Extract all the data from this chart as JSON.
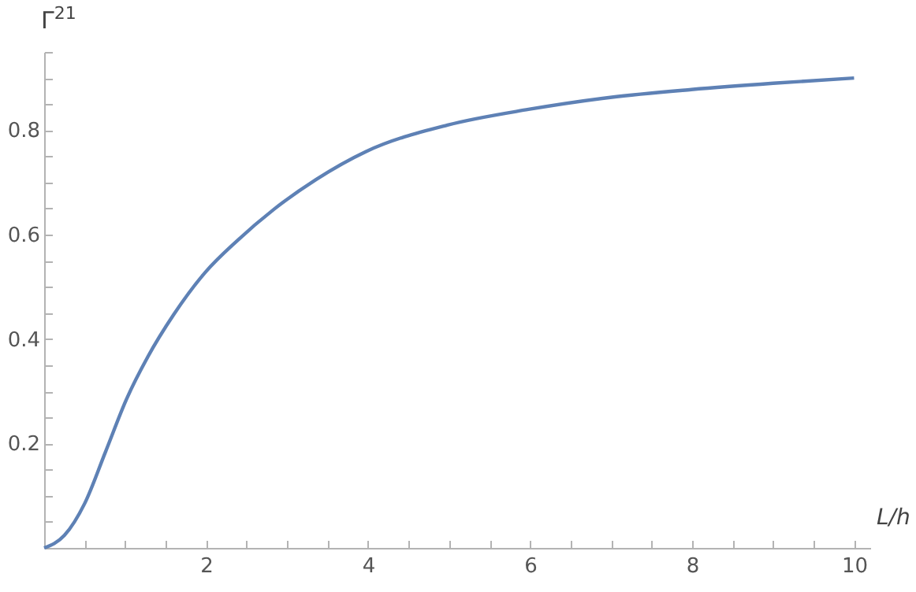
{
  "chart_data": {
    "type": "line",
    "xlabel": "L/h",
    "ylabel": "Γ$^{21}$",
    "x": [
      0,
      0.25,
      0.5,
      0.76,
      1.02,
      1.28,
      1.6,
      1.99,
      2.38,
      2.84,
      3.36,
      3.97,
      4.98,
      5.98,
      6.99,
      7.99,
      9.0,
      10.0
    ],
    "series": [
      {
        "color": "#5e81b5",
        "values": [
          0,
          0.024,
          0.085,
          0.185,
          0.286,
          0.366,
          0.447,
          0.528,
          0.588,
          0.649,
          0.706,
          0.759,
          0.81,
          0.84,
          0.863,
          0.878,
          0.89,
          0.9
        ]
      }
    ],
    "xlim": [
      0,
      10.2
    ],
    "ylim": [
      0,
      0.95
    ],
    "xticks": [
      {
        "value": 0.5,
        "label": null
      },
      {
        "value": 1,
        "label": null
      },
      {
        "value": 1.5,
        "label": null
      },
      2,
      {
        "value": 2.5,
        "label": null
      },
      {
        "value": 3,
        "label": null
      },
      {
        "value": 3.5,
        "label": null
      },
      4,
      {
        "value": 4.5,
        "label": null
      },
      {
        "value": 5,
        "label": null
      },
      {
        "value": 5.5,
        "label": null
      },
      6,
      {
        "value": 6.5,
        "label": null
      },
      {
        "value": 7,
        "label": null
      },
      {
        "value": 7.5,
        "label": null
      },
      8,
      {
        "value": 8.5,
        "label": null
      },
      {
        "value": 9,
        "label": null
      },
      {
        "value": 9.5,
        "label": null
      },
      10
    ],
    "yticks": [
      {
        "value": 0.05,
        "label": null
      },
      {
        "value": 0.1,
        "label": null
      },
      {
        "value": 0.15,
        "label": null
      },
      0.2,
      {
        "value": 0.25,
        "label": null
      },
      {
        "value": 0.3,
        "label": null
      },
      {
        "value": 0.35,
        "label": null
      },
      0.4,
      {
        "value": 0.45,
        "label": null
      },
      {
        "value": 0.5,
        "label": null
      },
      {
        "value": 0.55,
        "label": null
      },
      0.6,
      {
        "value": 0.65,
        "label": null
      },
      {
        "value": 0.7,
        "label": null
      },
      {
        "value": 0.75,
        "label": null
      },
      0.8,
      {
        "value": 0.85,
        "label": null
      },
      {
        "value": 0.9,
        "label": null
      },
      {
        "value": 0.95,
        "label": null
      }
    ]
  }
}
